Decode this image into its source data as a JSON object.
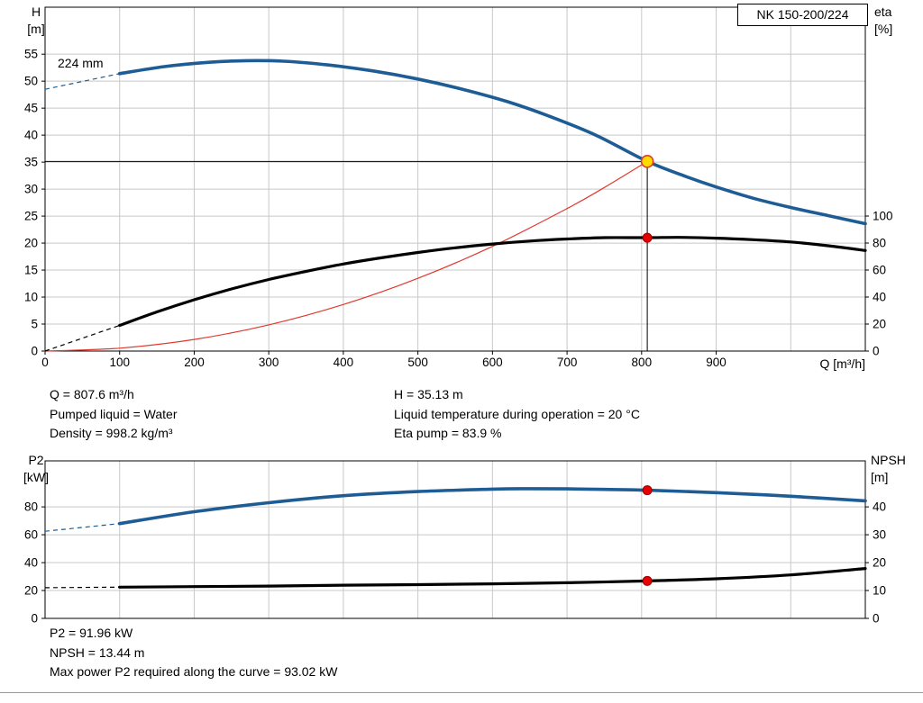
{
  "title_box": {
    "label": "NK 150-200/224"
  },
  "labels": {
    "top_left_axis": [
      "H",
      "[m]"
    ],
    "top_right_axis": [
      "eta",
      "[%]"
    ],
    "x_axis": "Q [m³/h]",
    "curve_size": "224 mm",
    "bottom_left_axis": [
      "P2",
      "[kW]"
    ],
    "bottom_right_axis": [
      "NPSH",
      "[m]"
    ]
  },
  "duty_info": {
    "q": "Q = 807.6 m³/h",
    "pumped_liquid": "Pumped liquid = Water",
    "density": "Density = 998.2 kg/m³",
    "h": "H = 35.13 m",
    "temperature": "Liquid temperature during operation = 20 °C",
    "eta_pump": "Eta pump = 83.9 %"
  },
  "power_info": {
    "p2": "P2 = 91.96 kW",
    "npsh": "NPSH = 13.44 m",
    "max_p2": "Max power P2 required along the curve = 93.02 kW"
  },
  "colors": {
    "curve_blue": "#1e5c96",
    "curve_black": "#000000",
    "system_red": "#e03a2f",
    "duty_fill": "#ffd900",
    "duty_stroke": "#e03a2f",
    "dot_fill": "#e60000",
    "dot_stroke": "#990000",
    "grid": "#c8c8c8",
    "axis": "#000000"
  },
  "chart_data": [
    {
      "id": "hq-chart",
      "type": "line",
      "title": "NK 150-200/224",
      "x": {
        "label": "Q [m³/h]",
        "min": 0,
        "max": 1100,
        "grid_step": 100,
        "tick_labels": [
          0,
          100,
          200,
          300,
          400,
          500,
          600,
          700,
          800,
          900
        ]
      },
      "y_left": {
        "label": "H [m]",
        "min": 0,
        "max": 63.7,
        "tick_values": [
          0,
          5,
          10,
          15,
          20,
          25,
          30,
          35,
          40,
          45,
          50,
          55
        ]
      },
      "y_right": {
        "label": "eta [%]",
        "min": 0,
        "max": 254.7,
        "tick_values": [
          0,
          20,
          40,
          60,
          80,
          100
        ]
      },
      "ref_lines": [
        {
          "type": "h",
          "axis": "left",
          "v": 35.13,
          "q1": 0,
          "q2": 807.6
        },
        {
          "type": "v",
          "axis": "left",
          "q": 807.6,
          "v1": 0,
          "v2": 35.13
        }
      ],
      "series": [
        {
          "name": "system-curve",
          "axis": "left",
          "color": "system_red",
          "width": 1.2,
          "points": [
            [
              0,
              0
            ],
            [
              100,
              0.54
            ],
            [
              200,
              2.15
            ],
            [
              300,
              4.85
            ],
            [
              400,
              8.62
            ],
            [
              500,
              13.47
            ],
            [
              600,
              19.39
            ],
            [
              700,
              26.39
            ],
            [
              750,
              30.3
            ],
            [
              807.6,
              35.13
            ]
          ]
        },
        {
          "name": "efficiency-curve",
          "axis": "right",
          "color": "curve_black",
          "width": 3.2,
          "dashed_lead": [
            [
              0,
              0
            ],
            [
              100,
              19
            ]
          ],
          "points": [
            [
              100,
              19
            ],
            [
              150,
              29
            ],
            [
              200,
              38
            ],
            [
              250,
              46
            ],
            [
              300,
              53
            ],
            [
              350,
              59
            ],
            [
              400,
              64.5
            ],
            [
              450,
              69
            ],
            [
              500,
              73
            ],
            [
              550,
              76.5
            ],
            [
              600,
              79.3
            ],
            [
              650,
              81.5
            ],
            [
              700,
              83
            ],
            [
              750,
              84
            ],
            [
              807.6,
              84
            ],
            [
              850,
              84.2
            ],
            [
              900,
              83.6
            ],
            [
              950,
              82.5
            ],
            [
              1000,
              80.8
            ],
            [
              1050,
              78
            ],
            [
              1100,
              74.5
            ]
          ]
        },
        {
          "name": "head-curve",
          "axis": "left",
          "color": "curve_blue",
          "width": 3.6,
          "dashed_lead": [
            [
              0,
              48.5
            ],
            [
              100,
              51.4
            ]
          ],
          "points": [
            [
              100,
              51.4
            ],
            [
              160,
              52.7
            ],
            [
              220,
              53.5
            ],
            [
              270,
              53.8
            ],
            [
              320,
              53.7
            ],
            [
              380,
              53.0
            ],
            [
              440,
              51.9
            ],
            [
              500,
              50.4
            ],
            [
              560,
              48.5
            ],
            [
              620,
              46.2
            ],
            [
              680,
              43.3
            ],
            [
              740,
              39.9
            ],
            [
              807.6,
              35.13
            ],
            [
              860,
              32.3
            ],
            [
              900,
              30.4
            ],
            [
              950,
              28.3
            ],
            [
              1000,
              26.6
            ],
            [
              1050,
              25.1
            ],
            [
              1100,
              23.6
            ]
          ]
        }
      ],
      "markers": [
        {
          "name": "duty-point",
          "style": "duty",
          "axis": "left",
          "q": 807.6,
          "v": 35.13
        },
        {
          "name": "eta-duty-point",
          "style": "dot",
          "axis": "right",
          "q": 807.6,
          "v": 83.9
        }
      ]
    },
    {
      "id": "p2-npsh-chart",
      "type": "line",
      "title": "",
      "x": {
        "label": "",
        "min": 0,
        "max": 1100,
        "grid_step": 100,
        "tick_labels": []
      },
      "y_left": {
        "label": "P2 [kW]",
        "min": 0,
        "max": 113,
        "tick_values": [
          0,
          20,
          40,
          60,
          80
        ]
      },
      "y_right": {
        "label": "NPSH [m]",
        "min": 0,
        "max": 56.5,
        "tick_values": [
          0,
          10,
          20,
          30,
          40
        ]
      },
      "ref_lines": [],
      "series": [
        {
          "name": "npsh-curve",
          "axis": "right",
          "color": "curve_black",
          "width": 3.2,
          "dashed_lead": [
            [
              0,
              11.0
            ],
            [
              100,
              11.2
            ]
          ],
          "points": [
            [
              100,
              11.2
            ],
            [
              200,
              11.4
            ],
            [
              300,
              11.6
            ],
            [
              400,
              11.9
            ],
            [
              500,
              12.1
            ],
            [
              600,
              12.4
            ],
            [
              700,
              12.8
            ],
            [
              807.6,
              13.44
            ],
            [
              900,
              14.2
            ],
            [
              1000,
              15.6
            ],
            [
              1100,
              17.9
            ]
          ]
        },
        {
          "name": "p2-curve",
          "axis": "left",
          "color": "curve_blue",
          "width": 3.6,
          "dashed_lead": [
            [
              0,
              62.5
            ],
            [
              100,
              68
            ]
          ],
          "points": [
            [
              100,
              68
            ],
            [
              200,
              76.5
            ],
            [
              300,
              83
            ],
            [
              400,
              88
            ],
            [
              500,
              91
            ],
            [
              600,
              92.7
            ],
            [
              650,
              93.02
            ],
            [
              700,
              92.9
            ],
            [
              750,
              92.5
            ],
            [
              807.6,
              91.96
            ],
            [
              900,
              90.2
            ],
            [
              1000,
              87.6
            ],
            [
              1100,
              84.3
            ]
          ]
        }
      ],
      "markers": [
        {
          "name": "p2-duty-point",
          "style": "dot",
          "axis": "left",
          "q": 807.6,
          "v": 91.96
        },
        {
          "name": "npsh-duty-point",
          "style": "dot",
          "axis": "right",
          "q": 807.6,
          "v": 13.44
        }
      ]
    }
  ]
}
